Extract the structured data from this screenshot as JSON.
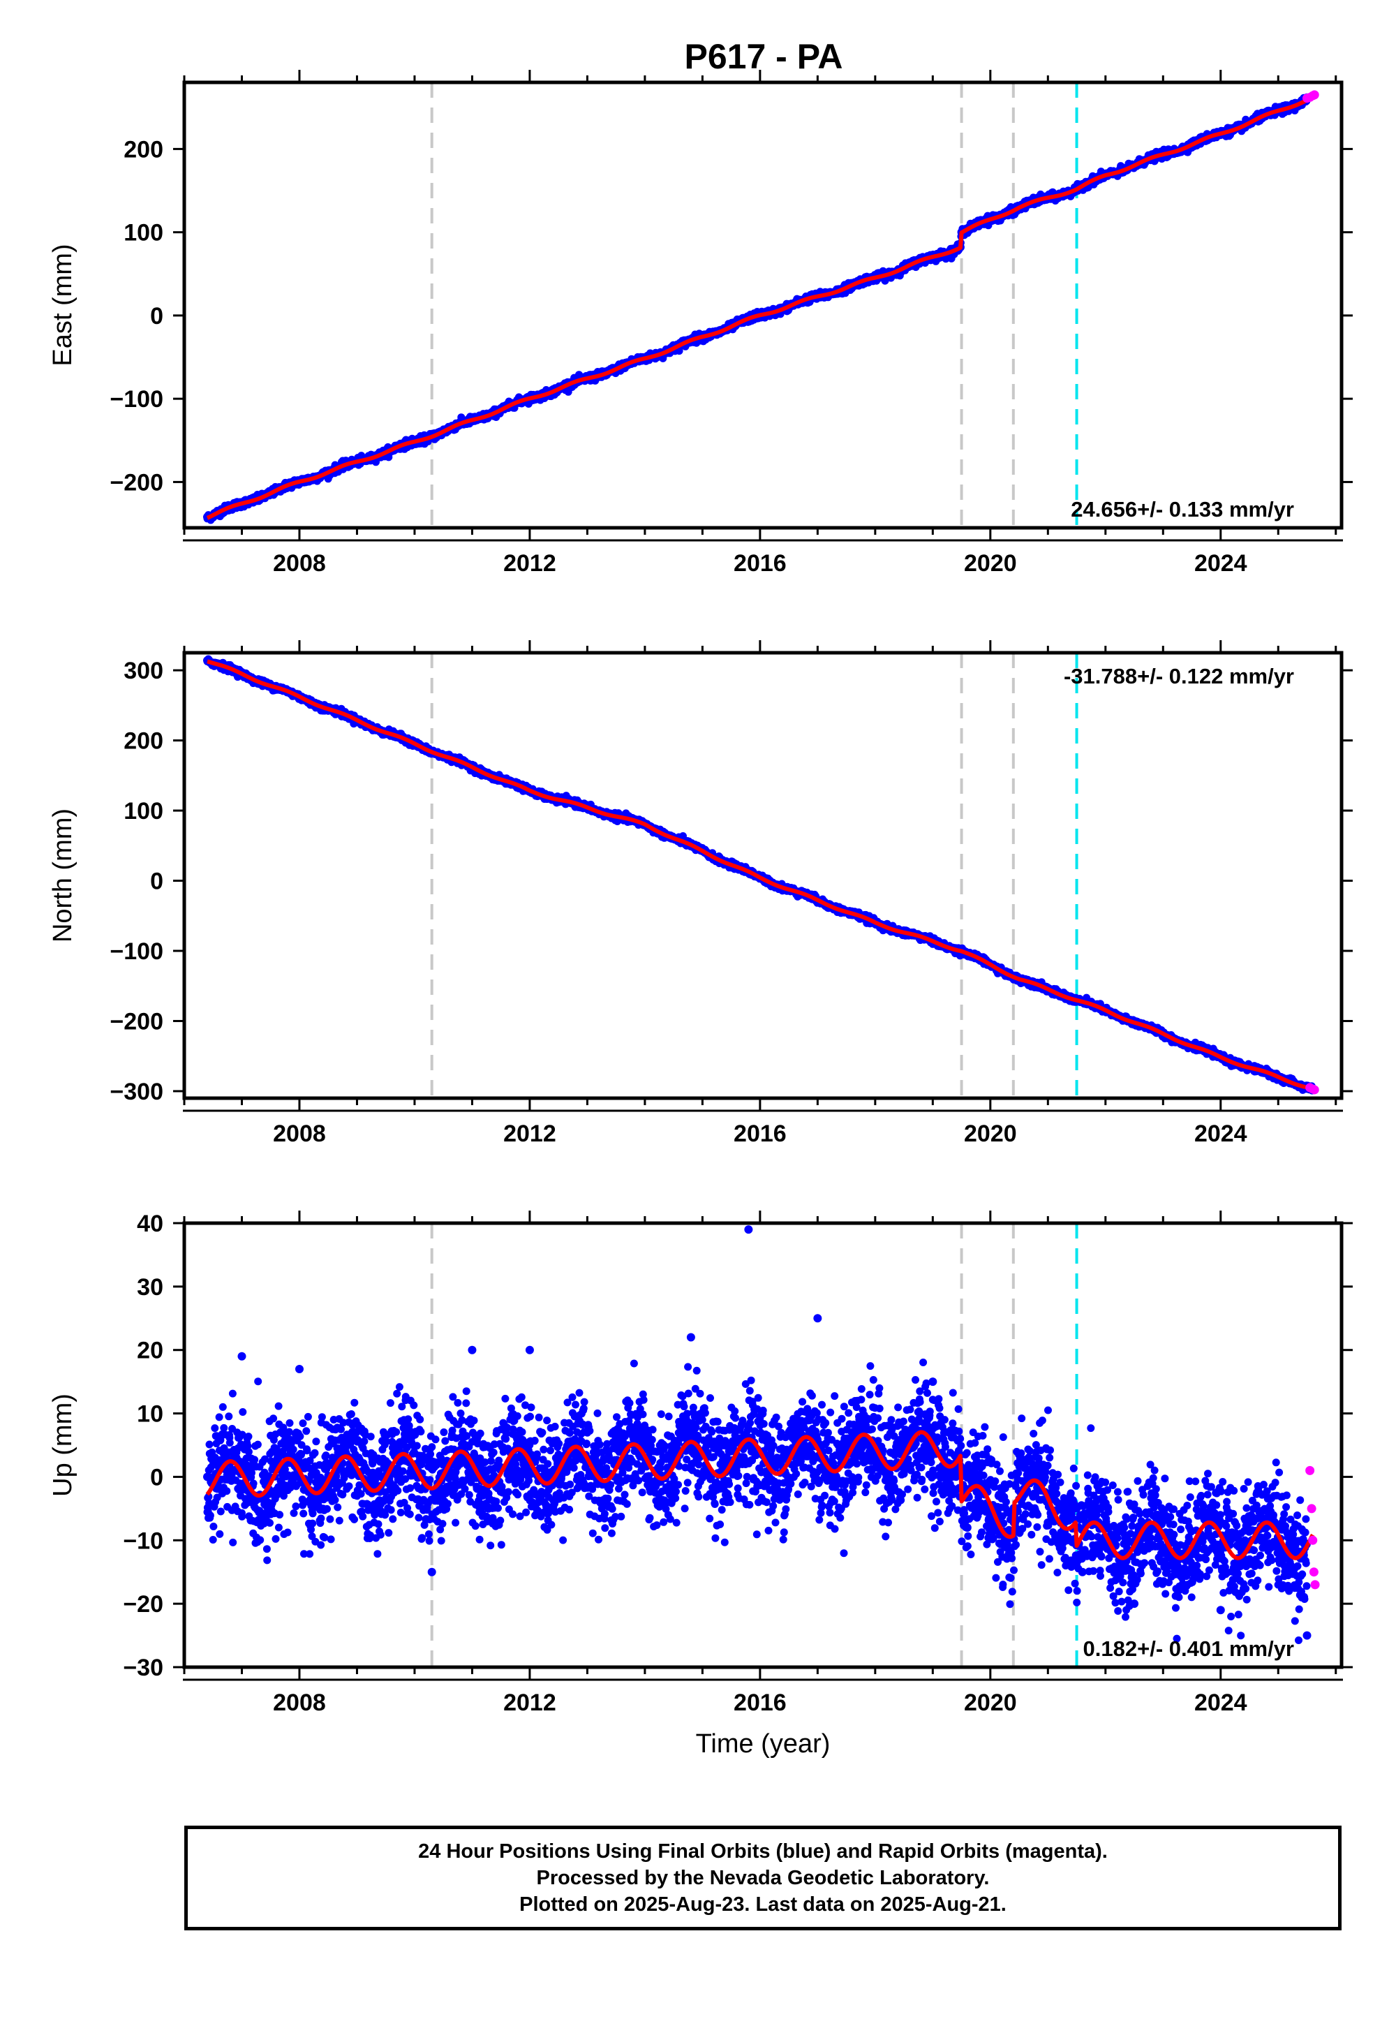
{
  "title": "P617 - PA",
  "colors": {
    "final_orbits": "#0000ff",
    "rapid_orbits": "#ff00ff",
    "model_fit": "#ff0000",
    "event_line": "#c8c8c8",
    "equipment_change_line": "#00e5ee",
    "axes": "#000000"
  },
  "chart_data": [
    {
      "type": "scatter",
      "component": "East",
      "ylabel": "East (mm)",
      "xlabel": "",
      "xlim": [
        2006.0,
        2026.1
      ],
      "ylim": [
        -255,
        280
      ],
      "xticks": [
        2008,
        2012,
        2016,
        2020,
        2024
      ],
      "yticks": [
        -200,
        -100,
        0,
        100,
        200
      ],
      "ytick_labels": [
        "−200",
        "−100",
        "0",
        "100",
        "200"
      ],
      "rate_label": "24.656+/- 0.133 mm/yr",
      "rate_position": "bottom-right",
      "series": [
        {
          "name": "Final Orbits (blue)",
          "style": "points",
          "x": [
            2006.4,
            2008.0,
            2010.0,
            2012.0,
            2014.0,
            2016.0,
            2018.0,
            2019.48,
            2019.5,
            2020.5,
            2021.5,
            2022.0,
            2024.0,
            2025.5
          ],
          "y": [
            -242,
            -200,
            -152,
            -100,
            -52,
            0,
            45,
            82,
            100,
            130,
            152,
            168,
            218,
            260
          ]
        },
        {
          "name": "Rapid Orbits (magenta)",
          "style": "points",
          "x": [
            2025.5,
            2025.55,
            2025.6,
            2025.63
          ],
          "y": [
            261,
            262,
            264,
            265
          ]
        },
        {
          "name": "Model fit",
          "style": "line",
          "x": [
            2006.4,
            2008.0,
            2010.0,
            2012.0,
            2014.0,
            2016.0,
            2018.0,
            2019.48,
            2019.5,
            2020.5,
            2021.5,
            2022.0,
            2024.0,
            2025.6
          ],
          "y": [
            -242,
            -200,
            -152,
            -100,
            -52,
            0,
            45,
            82,
            100,
            130,
            152,
            168,
            218,
            262
          ]
        }
      ],
      "event_lines": [
        2010.3,
        2019.5,
        2020.4
      ],
      "equipment_change_lines": [
        2021.5
      ]
    },
    {
      "type": "scatter",
      "component": "North",
      "ylabel": "North (mm)",
      "xlabel": "",
      "xlim": [
        2006.0,
        2026.1
      ],
      "ylim": [
        -310,
        325
      ],
      "xticks": [
        2008,
        2012,
        2016,
        2020,
        2024
      ],
      "yticks": [
        -300,
        -200,
        -100,
        0,
        100,
        200,
        300
      ],
      "ytick_labels": [
        "−300",
        "−200",
        "−100",
        "0",
        "100",
        "200",
        "300"
      ],
      "rate_label": "-31.788+/- 0.122 mm/yr",
      "rate_position": "top-right",
      "series": [
        {
          "name": "Final Orbits (blue)",
          "style": "points",
          "x": [
            2006.4,
            2008.0,
            2010.0,
            2012.0,
            2014.0,
            2016.0,
            2018.0,
            2019.5,
            2020.5,
            2021.5,
            2022.0,
            2024.0,
            2025.6
          ],
          "y": [
            314,
            262,
            195,
            128,
            80,
            4,
            -60,
            -100,
            -140,
            -170,
            -185,
            -252,
            -297
          ]
        },
        {
          "name": "Rapid Orbits (magenta)",
          "style": "points",
          "x": [
            2025.55,
            2025.6,
            2025.63
          ],
          "y": [
            -295,
            -297,
            -298
          ]
        },
        {
          "name": "Model fit",
          "style": "line",
          "x": [
            2006.4,
            2008.0,
            2010.0,
            2012.0,
            2014.0,
            2016.0,
            2018.0,
            2019.5,
            2020.5,
            2021.5,
            2022.0,
            2024.0,
            2025.6
          ],
          "y": [
            314,
            262,
            195,
            128,
            80,
            4,
            -60,
            -100,
            -140,
            -170,
            -185,
            -252,
            -297
          ]
        }
      ],
      "event_lines": [
        2010.3,
        2019.5,
        2020.4
      ],
      "equipment_change_lines": [
        2021.5
      ]
    },
    {
      "type": "scatter",
      "component": "Up",
      "ylabel": "Up (mm)",
      "xlabel": "Time (year)",
      "xlim": [
        2006.0,
        2026.1
      ],
      "ylim": [
        -30,
        40
      ],
      "xticks": [
        2008,
        2012,
        2016,
        2020,
        2024
      ],
      "yticks": [
        -30,
        -20,
        -10,
        0,
        10,
        20,
        30,
        40
      ],
      "ytick_labels": [
        "−30",
        "−20",
        "−10",
        "0",
        "10",
        "20",
        "30",
        "40"
      ],
      "rate_label": "0.182+/- 0.401 mm/yr",
      "rate_position": "bottom-right",
      "series": [
        {
          "name": "Final Orbits (blue)",
          "style": "points",
          "x": [
            2006.4,
            2007.0,
            2008.0,
            2010.3,
            2011.0,
            2012.0,
            2014.8,
            2015.8,
            2017.0,
            2019.0,
            2019.6,
            2020.0,
            2021.6,
            2022.5,
            2024.0,
            2025.5
          ],
          "y": [
            0,
            19,
            17,
            -15,
            20,
            20,
            22,
            39,
            25,
            15,
            -8,
            -5,
            -15,
            -20,
            -21,
            -25
          ]
        },
        {
          "name": "Rapid Orbits (magenta)",
          "style": "points",
          "x": [
            2025.55,
            2025.58,
            2025.6,
            2025.62,
            2025.64
          ],
          "y": [
            1,
            -5,
            -10,
            -15,
            -17
          ]
        },
        {
          "name": "Model fit",
          "style": "line",
          "x": [
            2006.4,
            2019.48,
            2019.5,
            2020.4,
            2020.42,
            2021.48,
            2021.5,
            2025.6
          ],
          "y": [
            -0.5,
            4.5,
            -3,
            -7,
            -2,
            -6,
            -10,
            -10
          ]
        }
      ],
      "event_lines": [
        2010.3,
        2019.5,
        2020.4
      ],
      "equipment_change_lines": [
        2021.5
      ]
    }
  ],
  "footer": {
    "line1": "24 Hour Positions Using Final Orbits (blue) and Rapid Orbits (magenta).",
    "line2": "Processed by the Nevada Geodetic Laboratory.",
    "line3": "Plotted on 2025-Aug-23. Last data on 2025-Aug-21."
  }
}
